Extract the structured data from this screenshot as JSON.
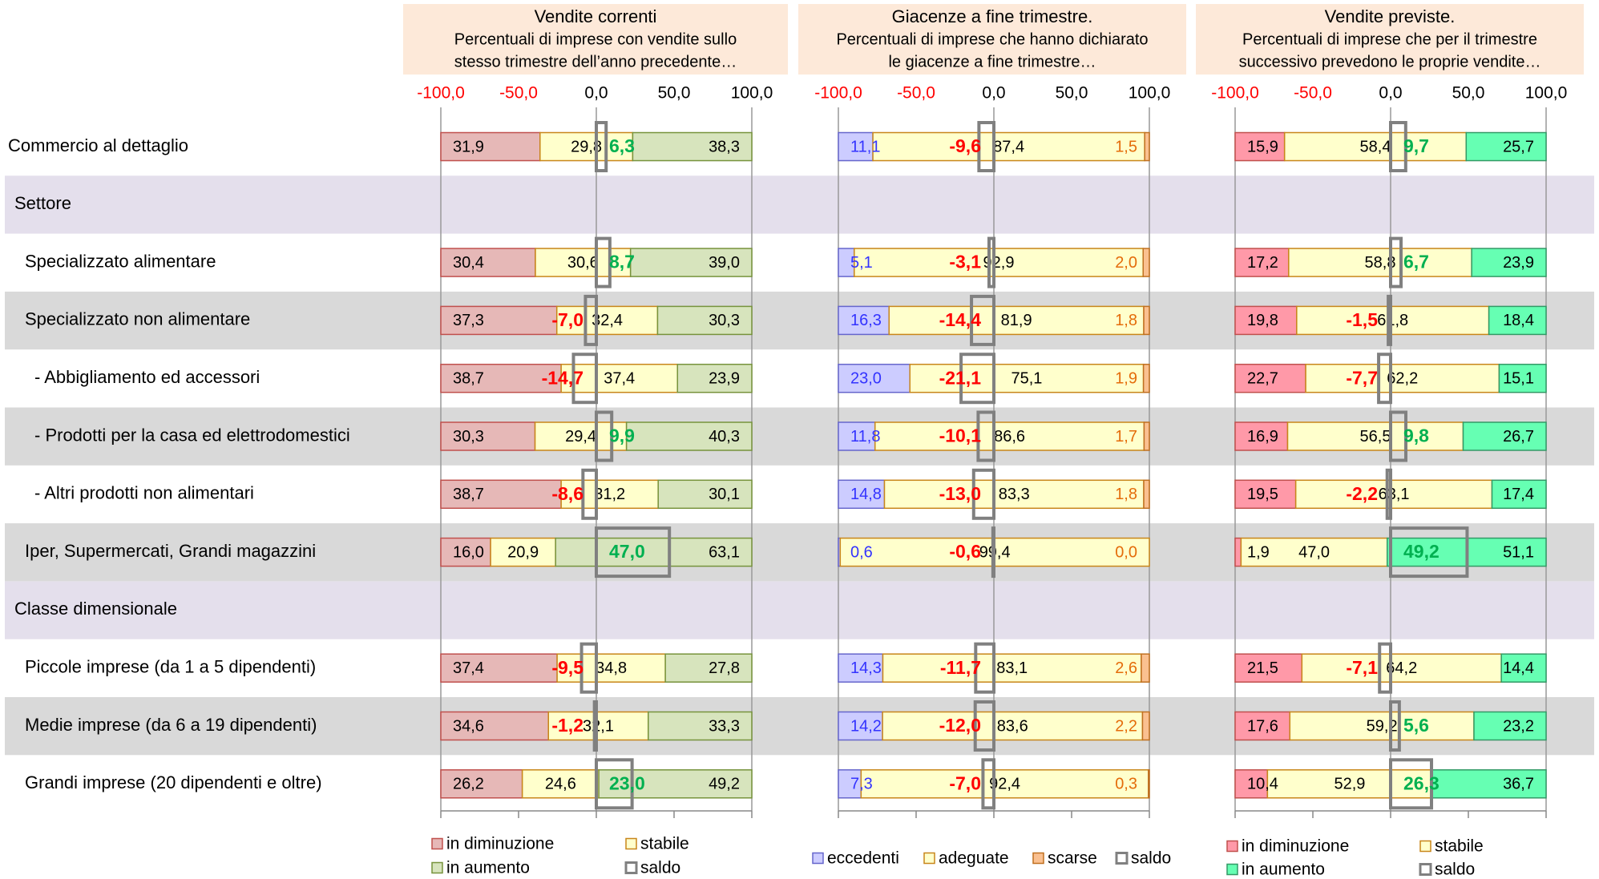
{
  "chart_data": [
    {
      "type": "bar",
      "title": "Vendite correnti",
      "subtitle": [
        "Percentuali di imprese con vendite sullo",
        "stesso trimestre dell’anno precedente…"
      ],
      "categories": [
        "Commercio al dettaglio",
        "Settore",
        "Specializzato alimentare",
        "Specializzato non alimentare",
        "- Abbigliamento ed accessori",
        "- Prodotti per la casa ed elettrodomestici",
        "- Altri prodotti non alimentari",
        "Iper, Supermercati, Grandi magazzini",
        "Classe dimensionale",
        "Piccole imprese (da 1 a 5 dipendenti)",
        "Medie imprese (da 6 a 19 dipendenti)",
        "Grandi imprese (20 dipendenti e oltre)"
      ],
      "xlim": [
        -100,
        100
      ],
      "xticks": [
        {
          "value": -100,
          "label": "-100,0"
        },
        {
          "value": -50,
          "label": "-50,0"
        },
        {
          "value": 0,
          "label": "0,0"
        },
        {
          "value": 50,
          "label": "50,0"
        },
        {
          "value": 100,
          "label": "100,0"
        }
      ],
      "negative_tick_color": "#ff0000",
      "series": [
        {
          "name": "in diminuzione",
          "color": "#e6b8b7",
          "border": "#c0504d",
          "label_color": "#000000",
          "values": [
            31.9,
            null,
            30.4,
            37.3,
            38.7,
            30.3,
            38.7,
            16.0,
            null,
            37.4,
            34.6,
            26.2
          ],
          "value_labels": [
            "31,9",
            null,
            "30,4",
            "37,3",
            "38,7",
            "30,3",
            "38,7",
            "16,0",
            null,
            "37,4",
            "34,6",
            "26,2"
          ]
        },
        {
          "name": "stabile",
          "color": "#ffffcc",
          "border": "#c8861a",
          "label_color": "#000000",
          "values": [
            29.8,
            null,
            30.6,
            32.4,
            37.4,
            29.4,
            31.2,
            20.9,
            null,
            34.8,
            32.1,
            24.6
          ],
          "value_labels": [
            "29,8",
            null,
            "30,6",
            "32,4",
            "37,4",
            "29,4",
            "31,2",
            "20,9",
            null,
            "34,8",
            "32,1",
            "24,6"
          ]
        },
        {
          "name": "in aumento",
          "color": "#d7e4bd",
          "border": "#77933c",
          "label_color": "#000000",
          "values": [
            38.3,
            null,
            39.0,
            30.3,
            23.9,
            40.3,
            30.1,
            63.1,
            null,
            27.8,
            33.3,
            49.2
          ],
          "value_labels": [
            "38,3",
            null,
            "39,0",
            "30,3",
            "23,9",
            "40,3",
            "30,1",
            "63,1",
            null,
            "27,8",
            "33,3",
            "49,2"
          ]
        },
        {
          "name": "saldo",
          "color": "#808080",
          "positive_label_color": "#00b050",
          "negative_label_color": "#ff0000",
          "values": [
            6.3,
            null,
            8.7,
            -7.0,
            -14.7,
            9.9,
            -8.6,
            47.0,
            null,
            -9.5,
            -1.2,
            23.0
          ],
          "value_labels": [
            "6,3",
            null,
            "8,7",
            "-7,0",
            "-14,7",
            "9,9",
            "-8,6",
            "47,0",
            null,
            "-9,5",
            "-1,2",
            "23,0"
          ]
        }
      ]
    },
    {
      "type": "bar",
      "title": "Giacenze a fine trimestre.",
      "subtitle": [
        "Percentuali di imprese che hanno dichiarato",
        "le giacenze a fine trimestre…"
      ],
      "xlim": [
        -100,
        100
      ],
      "xticks": [
        {
          "value": -100,
          "label": "-100,0"
        },
        {
          "value": -50,
          "label": "-50,0"
        },
        {
          "value": 0,
          "label": "0,0"
        },
        {
          "value": 50,
          "label": "50,0"
        },
        {
          "value": 100,
          "label": "100,0"
        }
      ],
      "negative_tick_color": "#ff0000",
      "series": [
        {
          "name": "eccedenti",
          "color": "#ccccff",
          "border": "#6666cc",
          "label_color": "#3333ff",
          "values": [
            11.1,
            null,
            5.1,
            16.3,
            23.0,
            11.8,
            14.8,
            0.6,
            null,
            14.3,
            14.2,
            7.3
          ],
          "value_labels": [
            "11,1",
            null,
            "5,1",
            "16,3",
            "23,0",
            "11,8",
            "14,8",
            "0,6",
            null,
            "14,3",
            "14,2",
            "7,3"
          ]
        },
        {
          "name": "adeguate",
          "color": "#ffffcc",
          "border": "#c8861a",
          "label_color": "#000000",
          "values": [
            87.4,
            null,
            92.9,
            81.9,
            75.1,
            86.6,
            83.3,
            99.4,
            null,
            83.1,
            83.6,
            92.4
          ],
          "value_labels": [
            "87,4",
            null,
            "92,9",
            "81,9",
            "75,1",
            "86,6",
            "83,3",
            "99,4",
            null,
            "83,1",
            "83,6",
            "92,4"
          ]
        },
        {
          "name": "scarse",
          "color": "#fac090",
          "border": "#c07020",
          "label_color": "#e46c0a",
          "values": [
            1.5,
            null,
            2.0,
            1.8,
            1.9,
            1.7,
            1.8,
            0.0,
            null,
            2.6,
            2.2,
            0.3
          ],
          "value_labels": [
            "1,5",
            null,
            "2,0",
            "1,8",
            "1,9",
            "1,7",
            "1,8",
            "0,0",
            null,
            "2,6",
            "2,2",
            "0,3"
          ]
        },
        {
          "name": "saldo",
          "color": "#808080",
          "positive_label_color": "#00b050",
          "negative_label_color": "#ff0000",
          "values": [
            -9.6,
            null,
            -3.1,
            -14.4,
            -21.1,
            -10.1,
            -13.0,
            -0.6,
            null,
            -11.7,
            -12.0,
            -7.0
          ],
          "value_labels": [
            "-9,6",
            null,
            "-3,1",
            "-14,4",
            "-21,1",
            "-10,1",
            "-13,0",
            "-0,6",
            null,
            "-11,7",
            "-12,0",
            "-7,0"
          ]
        }
      ]
    },
    {
      "type": "bar",
      "title": "Vendite previste.",
      "subtitle": [
        "Percentuali di imprese che per il trimestre",
        "successivo prevedono le proprie vendite…"
      ],
      "xlim": [
        -100,
        100
      ],
      "xticks": [
        {
          "value": -100,
          "label": "-100,0"
        },
        {
          "value": -50,
          "label": "-50,0"
        },
        {
          "value": 0,
          "label": "0,0"
        },
        {
          "value": 50,
          "label": "50,0"
        },
        {
          "value": 100,
          "label": "100,0"
        }
      ],
      "negative_tick_color": "#ff0000",
      "series": [
        {
          "name": "in diminuzione",
          "color": "#ff99a8",
          "border": "#c0504d",
          "label_color": "#000000",
          "values": [
            15.9,
            null,
            17.2,
            19.8,
            22.7,
            16.9,
            19.5,
            1.9,
            null,
            21.5,
            17.6,
            10.4
          ],
          "value_labels": [
            "15,9",
            null,
            "17,2",
            "19,8",
            "22,7",
            "16,9",
            "19,5",
            "1,9",
            null,
            "21,5",
            "17,6",
            "10,4"
          ]
        },
        {
          "name": "stabile",
          "color": "#ffffcc",
          "border": "#c8861a",
          "label_color": "#000000",
          "values": [
            58.4,
            null,
            58.8,
            61.8,
            62.2,
            56.5,
            63.1,
            47.0,
            null,
            64.2,
            59.2,
            52.9
          ],
          "value_labels": [
            "58,4",
            null,
            "58,8",
            "61,8",
            "62,2",
            "56,5",
            "63,1",
            "47,0",
            null,
            "64,2",
            "59,2",
            "52,9"
          ]
        },
        {
          "name": "in aumento",
          "color": "#66ffb3",
          "border": "#339966",
          "label_color": "#000000",
          "values": [
            25.7,
            null,
            23.9,
            18.4,
            15.1,
            26.7,
            17.4,
            51.1,
            null,
            14.4,
            23.2,
            36.7
          ],
          "value_labels": [
            "25,7",
            null,
            "23,9",
            "18,4",
            "15,1",
            "26,7",
            "17,4",
            "51,1",
            null,
            "14,4",
            "23,2",
            "36,7"
          ]
        },
        {
          "name": "saldo",
          "color": "#808080",
          "positive_label_color": "#00b050",
          "negative_label_color": "#ff0000",
          "values": [
            9.7,
            null,
            6.7,
            -1.5,
            -7.7,
            9.8,
            -2.2,
            49.2,
            null,
            -7.1,
            5.6,
            26.3
          ],
          "value_labels": [
            "9,7",
            null,
            "6,7",
            "-1,5",
            "-7,7",
            "9,8",
            "-2,2",
            "49,2",
            null,
            "-7,1",
            "5,6",
            "26,3"
          ]
        }
      ]
    }
  ]
}
